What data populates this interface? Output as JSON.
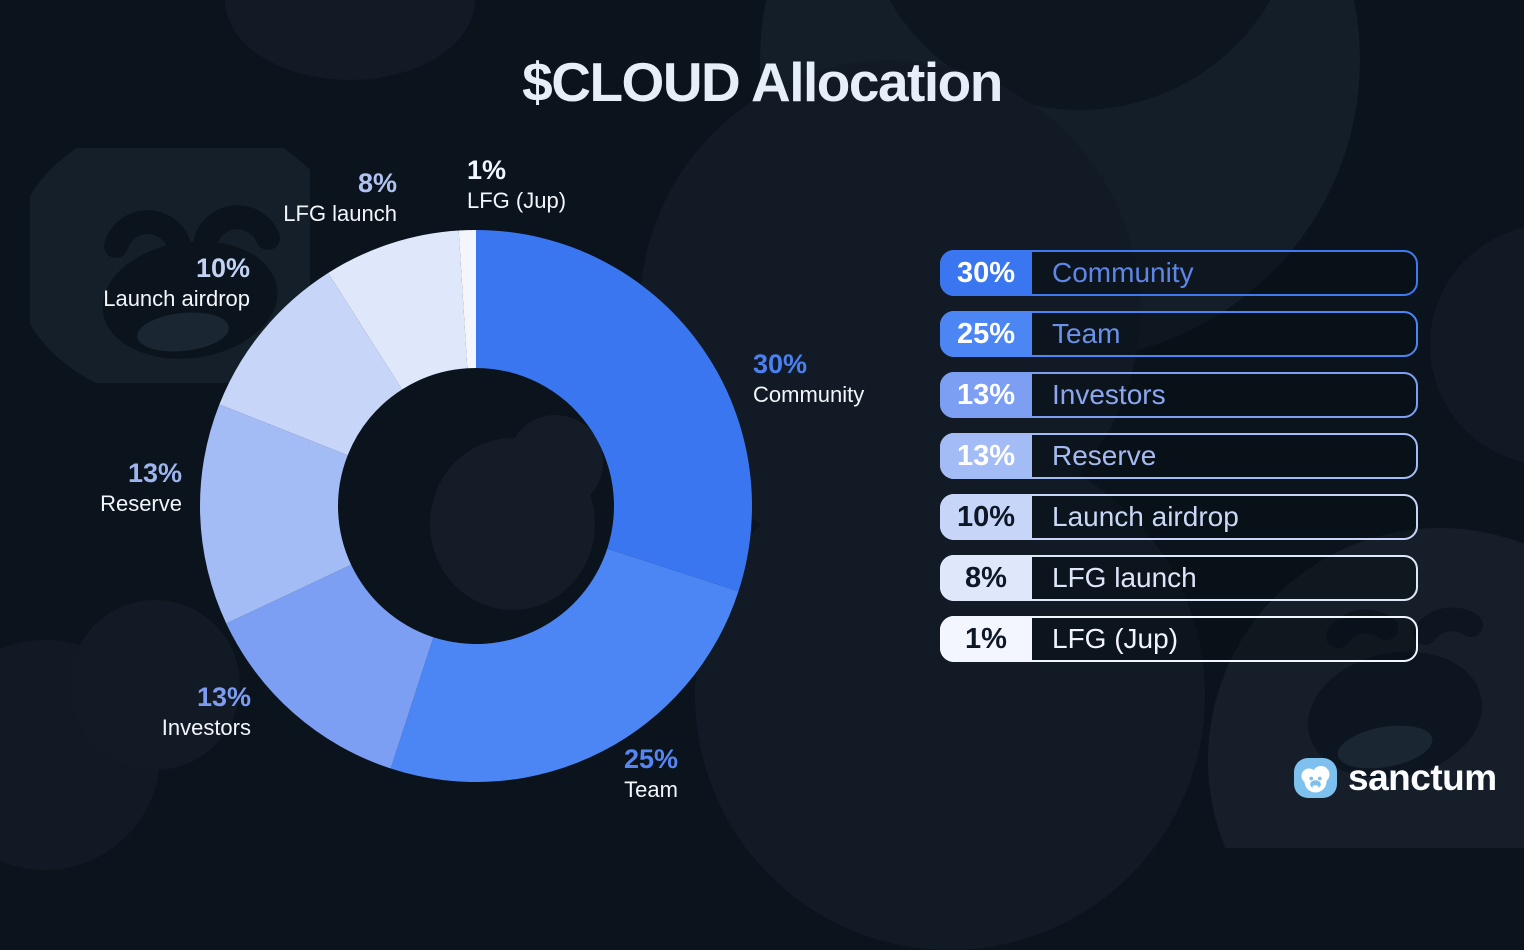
{
  "title": "$CLOUD Allocation",
  "colors": {
    "background": "#0B141D",
    "background_blob": "#131C26",
    "title_text": "#E6EEF7",
    "callout_name_text": "#F2F5F9"
  },
  "chart_data": {
    "type": "pie",
    "variant": "donut",
    "title": "$CLOUD Allocation",
    "categories": [
      "Community",
      "Team",
      "Investors",
      "Reserve",
      "Launch airdrop",
      "LFG launch",
      "LFG (Jup)"
    ],
    "values": [
      30,
      25,
      13,
      13,
      10,
      8,
      1
    ],
    "value_labels": [
      "30%",
      "25%",
      "13%",
      "13%",
      "10%",
      "8%",
      "1%"
    ],
    "colors": [
      "#3B76F1",
      "#4C86F4",
      "#7C9FF4",
      "#A4BCF6",
      "#C7D5F9",
      "#DFE8FB",
      "#F3F6FE"
    ],
    "start_angle_deg": 0,
    "direction": "clockwise",
    "inner_radius_ratio": 0.5,
    "legend_position": "right"
  },
  "callouts": [
    {
      "pct": "30%",
      "label": "Community",
      "pct_color": "#4A80F2"
    },
    {
      "pct": "25%",
      "label": "Team",
      "pct_color": "#5586F2"
    },
    {
      "pct": "13%",
      "label": "Investors",
      "pct_color": "#7D9DF2"
    },
    {
      "pct": "13%",
      "label": "Reserve",
      "pct_color": "#9DB4EE"
    },
    {
      "pct": "10%",
      "label": "Launch airdrop",
      "pct_color": "#C2D2F4"
    },
    {
      "pct": "8%",
      "label": "LFG launch",
      "pct_color": "#AFC2F0"
    },
    {
      "pct": "1%",
      "label": "LFG (Jup)",
      "pct_color": "#F2F6FE"
    }
  ],
  "legend": {
    "rows": [
      {
        "pct": "30%",
        "label": "Community",
        "badge_color": "#3B76F1",
        "badge_text_color": "#FFFFFF",
        "label_color": "#5E86E6",
        "border_color": "#3F79F0"
      },
      {
        "pct": "25%",
        "label": "Team",
        "badge_color": "#4C86F4",
        "badge_text_color": "#FFFFFF",
        "label_color": "#6A92EC",
        "border_color": "#4C86F4"
      },
      {
        "pct": "13%",
        "label": "Investors",
        "badge_color": "#7C9FF4",
        "badge_text_color": "#FFFFFF",
        "label_color": "#8CA7F0",
        "border_color": "#7C9FF4"
      },
      {
        "pct": "13%",
        "label": "Reserve",
        "badge_color": "#A4BCF6",
        "badge_text_color": "#FFFFFF",
        "label_color": "#A6BAF0",
        "border_color": "#A4BCF6"
      },
      {
        "pct": "10%",
        "label": "Launch airdrop",
        "badge_color": "#C7D5F9",
        "badge_text_color": "#0D1725",
        "label_color": "#CBD7F6",
        "border_color": "#C7D5F9"
      },
      {
        "pct": "8%",
        "label": "LFG launch",
        "badge_color": "#DFE8FB",
        "badge_text_color": "#0D1725",
        "label_color": "#DEE6F9",
        "border_color": "#DFE8FB"
      },
      {
        "pct": "1%",
        "label": "LFG (Jup)",
        "badge_color": "#F3F6FE",
        "badge_text_color": "#0D1725",
        "label_color": "#F1F4FC",
        "border_color": "#F3F6FE"
      }
    ]
  },
  "footer": {
    "brand": "sanctum",
    "logo_icon": "cloud-smiley-icon",
    "logo_badge_color": "#7EC1EF"
  }
}
